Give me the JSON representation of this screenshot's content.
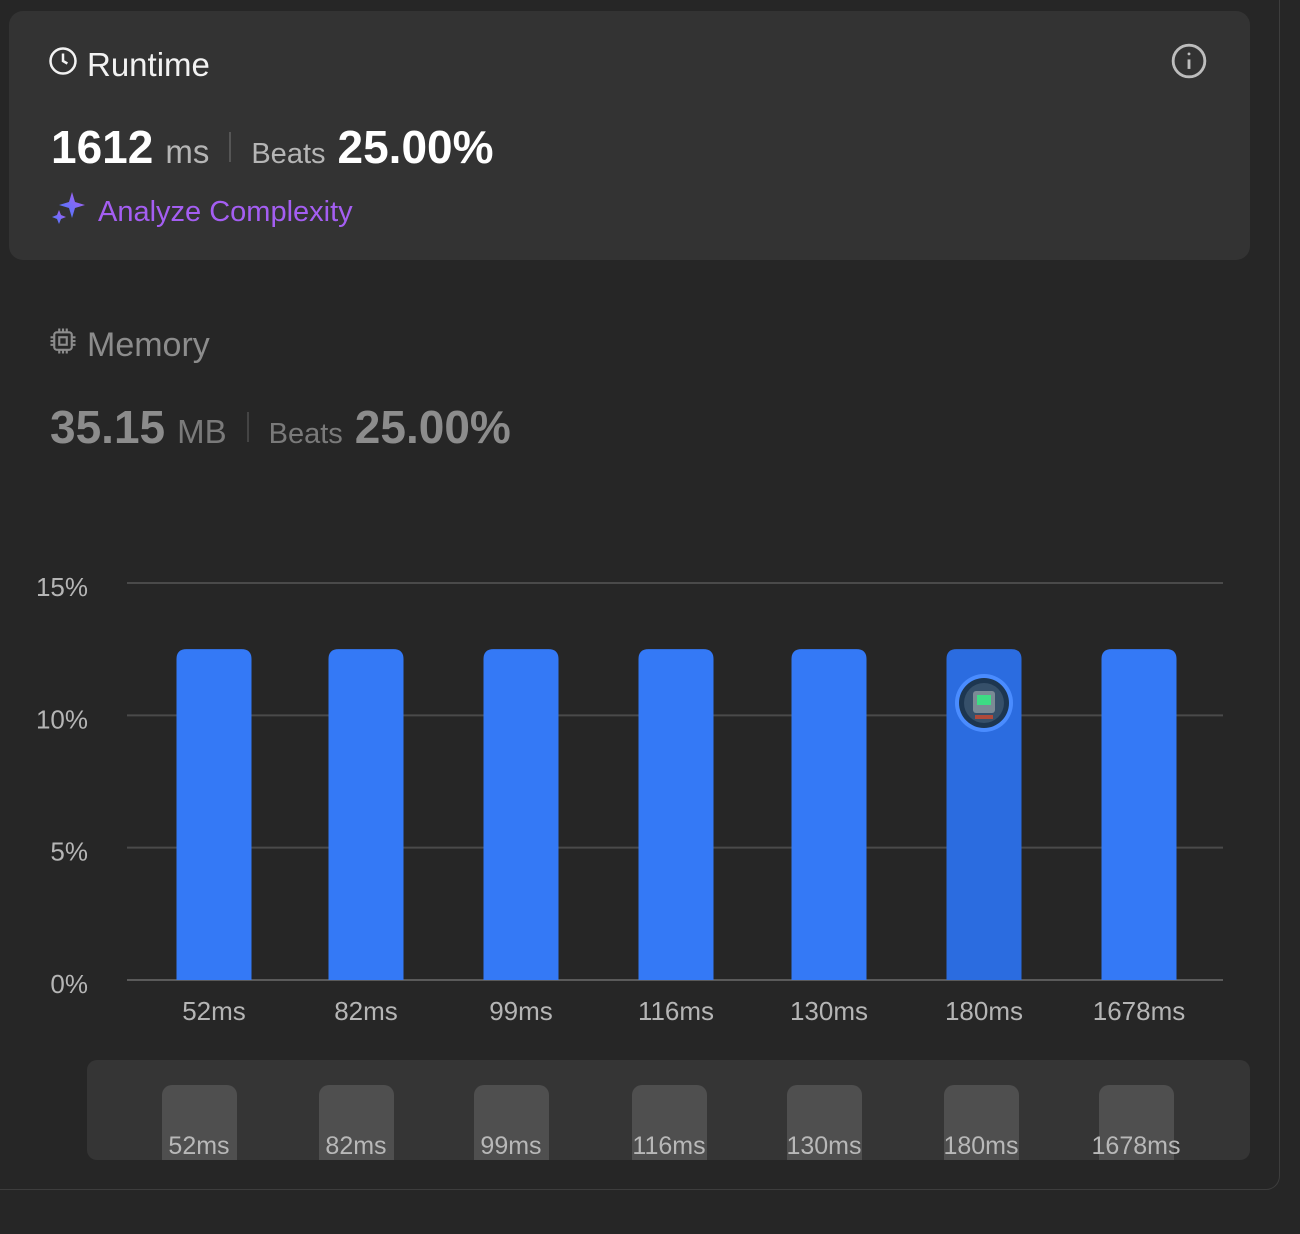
{
  "runtime": {
    "title": "Runtime",
    "value": "1612",
    "unit": "ms",
    "beats_label": "Beats",
    "beats_value": "25.00%",
    "analyze_label": "Analyze Complexity"
  },
  "memory": {
    "title": "Memory",
    "value": "35.15",
    "unit": "MB",
    "beats_label": "Beats",
    "beats_value": "25.00%"
  },
  "colors": {
    "bar": "#3479f6",
    "bar_highlight": "#2b6ce0",
    "analyze": "#a45ef2",
    "background": "#262626",
    "card": "#333333"
  },
  "chart_data": {
    "type": "bar",
    "categories": [
      "52ms",
      "82ms",
      "99ms",
      "116ms",
      "130ms",
      "180ms",
      "1678ms"
    ],
    "values": [
      12.5,
      12.5,
      12.5,
      12.5,
      12.5,
      12.5,
      12.5
    ],
    "ylim": [
      0,
      15
    ],
    "yticks": [
      "0%",
      "5%",
      "10%",
      "15%"
    ],
    "ytick_values": [
      0,
      5,
      10,
      15
    ],
    "highlight_category": "180ms",
    "grid": true,
    "xlabel": "",
    "ylabel": ""
  },
  "range_selector": {
    "labels": [
      "52ms",
      "82ms",
      "99ms",
      "116ms",
      "130ms",
      "180ms",
      "1678ms"
    ]
  }
}
